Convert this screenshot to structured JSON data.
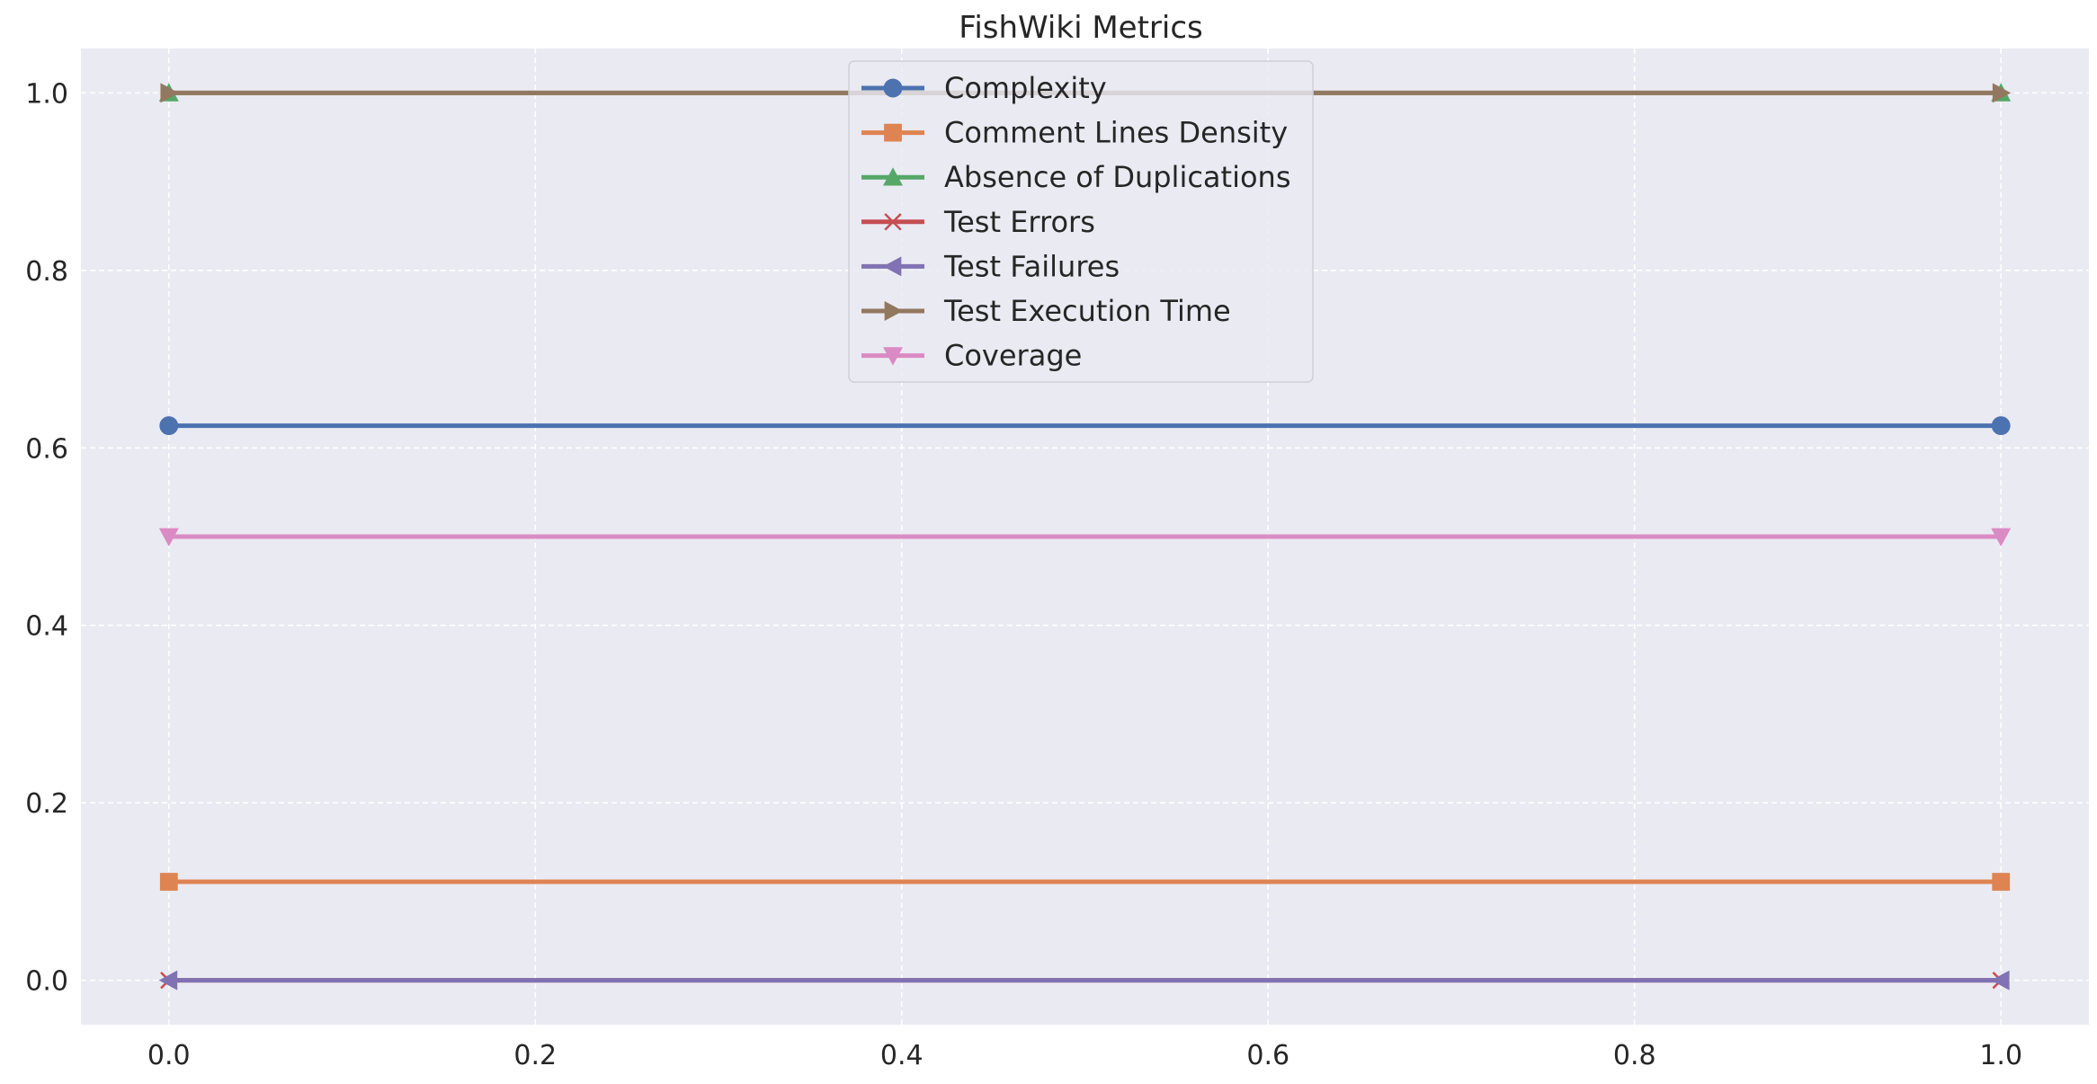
{
  "chart_data": {
    "type": "line",
    "title": "FishWiki Metrics",
    "xlabel": "",
    "ylabel": "",
    "x": [
      0,
      1
    ],
    "xlim": [
      -0.048,
      1.048
    ],
    "ylim": [
      -0.05,
      1.05
    ],
    "xticks": [
      0.0,
      0.2,
      0.4,
      0.6,
      0.8,
      1.0
    ],
    "yticks": [
      0.0,
      0.2,
      0.4,
      0.6,
      0.8,
      1.0
    ],
    "tick_format_decimals": 1,
    "grid": true,
    "grid_style": "dashed",
    "background": "#EAEAF2",
    "legend_position": "upper center",
    "series": [
      {
        "name": "Complexity",
        "values": [
          0.625,
          0.625
        ],
        "color": "#4C72B0",
        "marker": "circle"
      },
      {
        "name": "Comment Lines Density",
        "values": [
          0.111,
          0.111
        ],
        "color": "#DD8452",
        "marker": "square"
      },
      {
        "name": "Absence of Duplications",
        "values": [
          1.0,
          1.0
        ],
        "color": "#55A868",
        "marker": "triangle-up"
      },
      {
        "name": "Test Errors",
        "values": [
          0.0,
          0.0
        ],
        "color": "#C44E52",
        "marker": "x"
      },
      {
        "name": "Test Failures",
        "values": [
          0.0,
          0.0
        ],
        "color": "#8172B3",
        "marker": "triangle-left"
      },
      {
        "name": "Test Execution Time",
        "values": [
          1.0,
          1.0
        ],
        "color": "#937860",
        "marker": "triangle-right"
      },
      {
        "name": "Coverage",
        "values": [
          0.5,
          0.5
        ],
        "color": "#DA8BC3",
        "marker": "triangle-down"
      }
    ]
  }
}
